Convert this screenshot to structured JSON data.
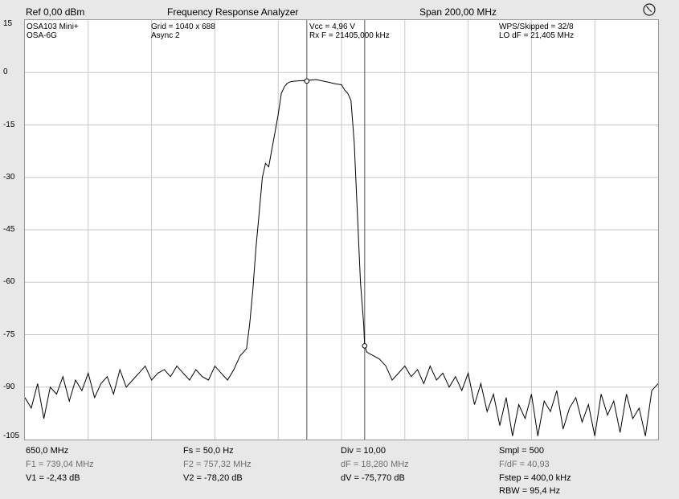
{
  "header": {
    "ref": "Ref  0,00 dBm",
    "title": "Frequency Response Analyzer",
    "span": "Span 200,00 MHz"
  },
  "info": {
    "device1": "OSA103 Mini+",
    "device2": "OSA-6G",
    "grid": "Grid = 1040 x 688",
    "async": "Async 2",
    "vcc": "Vcc = 4,96 V",
    "rxf": "Rx F = 21405,000 kHz",
    "wps": "WPS/Skipped  = 32/8",
    "lodf": "LO dF = 21,405 MHz"
  },
  "footer": {
    "start": "650,0 MHz",
    "f1": "F1 = 739,04 MHz",
    "v1": "V1 = -2,43 dB",
    "fs": "Fs = 50,0 Hz",
    "f2": "F2 = 757,32 MHz",
    "v2": "V2 = -78,20 dB",
    "div": "Div = 10,00",
    "df": "dF = 18,280 MHz",
    "dv": "dV = -75,770 dB",
    "smpl": "Smpl = 500",
    "fdf": "F/dF = 40,93",
    "fstep": "Fstep = 400,0 kHz",
    "rbw": "RBW = 95,4 Hz"
  },
  "icons": {
    "clock": "clock-icon"
  },
  "colors": {
    "trace": "#000000",
    "trace_gray": "#8a8a8a",
    "grid": "#c8c8c8",
    "marker": "#555555"
  },
  "chart_data": {
    "type": "line",
    "title": "Frequency Response Analyzer",
    "xlim": [
      650,
      850
    ],
    "ylim": [
      -105,
      15
    ],
    "yticks": [
      15,
      0,
      -15,
      -30,
      -45,
      -60,
      -75,
      -90,
      -105
    ],
    "ytick_labels": [
      "15",
      "0",
      "-15",
      "-30",
      "-45",
      "-60",
      "-75",
      "-90",
      "-105"
    ],
    "grid": true,
    "markers": [
      {
        "name": "F1",
        "x": 739.04,
        "y": -2.43
      },
      {
        "name": "F2",
        "x": 757.32,
        "y": -78.2
      }
    ],
    "series": [
      {
        "x": [
          650,
          652,
          654,
          656,
          658,
          660,
          662,
          664,
          666,
          668,
          670,
          672,
          674,
          676,
          678,
          680,
          682,
          684,
          686,
          688,
          690,
          692,
          694,
          696,
          698,
          700,
          702,
          704,
          706,
          708,
          710,
          712,
          714,
          716,
          718,
          719,
          720,
          721,
          722,
          723,
          724,
          725,
          726,
          727,
          728,
          729,
          730,
          731,
          732,
          733,
          734,
          735,
          736,
          738,
          739.04,
          740,
          742,
          744,
          746,
          748,
          750,
          751,
          752,
          753,
          754,
          755,
          756,
          757,
          757.32,
          758,
          760,
          762,
          764,
          766,
          768,
          770,
          772,
          774,
          776,
          778,
          780,
          782,
          784,
          786,
          788,
          790,
          792,
          794,
          796,
          798,
          800,
          802,
          804,
          806,
          808,
          810,
          812,
          814,
          816,
          818,
          820,
          822,
          824,
          826,
          828,
          830,
          832,
          834,
          836,
          838,
          840,
          842,
          844,
          846,
          848,
          850
        ],
        "y": [
          -93,
          -96,
          -89,
          -99,
          -90,
          -92,
          -87,
          -94,
          -88,
          -91,
          -86,
          -93,
          -89,
          -87,
          -92,
          -85,
          -90,
          -88,
          -86,
          -84,
          -88,
          -86,
          -85,
          -87,
          -84,
          -86,
          -88,
          -85,
          -87,
          -88,
          -84,
          -86,
          -88,
          -85,
          -81,
          -80,
          -79,
          -72,
          -62,
          -50,
          -40,
          -30,
          -26,
          -27,
          -22,
          -17,
          -12,
          -6,
          -4,
          -3,
          -2.6,
          -2.5,
          -2.4,
          -2.3,
          -2.43,
          -2.2,
          -2.0,
          -2.4,
          -2.8,
          -3.2,
          -3.5,
          -5,
          -6,
          -8,
          -20,
          -40,
          -60,
          -72,
          -78.2,
          -80,
          -81,
          -82,
          -84,
          -88,
          -86,
          -84,
          -87,
          -85,
          -89,
          -84,
          -88,
          -86,
          -90,
          -87,
          -91,
          -86,
          -95,
          -89,
          -97,
          -92,
          -101,
          -93,
          -104,
          -95,
          -99,
          -92,
          -104,
          -94,
          -97,
          -91,
          -102,
          -96,
          -93,
          -100,
          -95,
          -104,
          -92,
          -98,
          -94,
          -103,
          -92,
          -99,
          -96,
          -104,
          -91,
          -89
        ]
      }
    ]
  }
}
